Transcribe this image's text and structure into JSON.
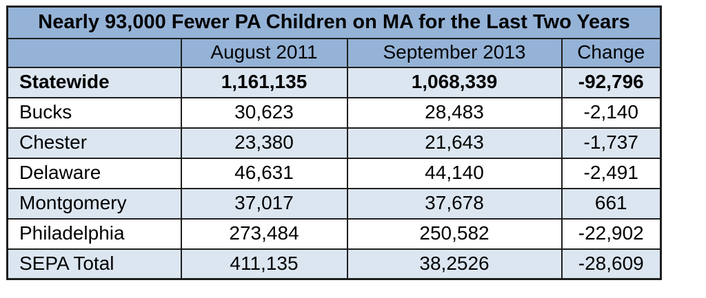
{
  "chart_data": {
    "type": "table",
    "title": "Nearly 93,000 Fewer PA Children on MA for the Last Two Years",
    "columns": [
      "",
      "August 2011",
      "September 2013",
      "Change"
    ],
    "rows": [
      [
        "Statewide",
        "1,161,135",
        "1,068,339",
        "-92,796"
      ],
      [
        "Bucks",
        "30,623",
        "28,483",
        "-2,140"
      ],
      [
        "Chester",
        "23,380",
        "21,643",
        "-1,737"
      ],
      [
        "Delaware",
        "46,631",
        "44,140",
        "-2,491"
      ],
      [
        "Montgomery",
        "37,017",
        "37,678",
        "661"
      ],
      [
        "Philadelphia",
        "273,484",
        "250,582",
        "-22,902"
      ],
      [
        "SEPA Total",
        "411,135",
        "38,2526",
        "-28,609"
      ]
    ],
    "layout_hints": {
      "bold_rows": [
        "Statewide"
      ],
      "shaded_rows": [
        "Statewide",
        "Chester",
        "Montgomery",
        "SEPA Total"
      ],
      "first_column_align": "left",
      "value_align": "center"
    },
    "colors": {
      "header_bg": "#95B3D7",
      "shaded_row_bg": "#DCE6F1",
      "plain_row_bg": "#FFFFFF",
      "border": "#1E1E1E",
      "text": "#000000"
    }
  }
}
